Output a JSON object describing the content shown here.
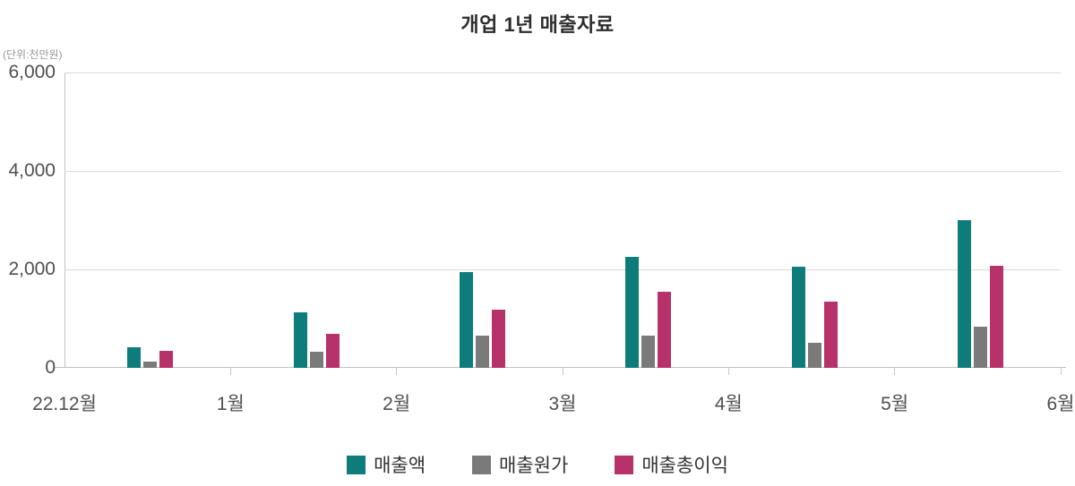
{
  "chart_data": {
    "type": "bar",
    "title": "개업 1년 매출자료",
    "unit": "(단위:천만원)",
    "x_tick_labels": [
      "22.12월",
      "1월",
      "2월",
      "3월",
      "4월",
      "5월",
      "6월"
    ],
    "categories": [
      "22.12월",
      "1월",
      "2월",
      "3월",
      "4월",
      "5월"
    ],
    "y_ticks": [
      0,
      2000,
      4000,
      6000
    ],
    "y_tick_labels": [
      "0",
      "2,000",
      "4,000",
      "6,000"
    ],
    "ylim": [
      0,
      6000
    ],
    "grid": "horizontal",
    "legend_position": "bottom",
    "bars_between_ticks": true,
    "series": [
      {
        "id": "sales",
        "name": "매출액",
        "color": "#0E7C7B",
        "values": [
          420,
          1130,
          1950,
          2250,
          2050,
          3000
        ]
      },
      {
        "id": "cost",
        "name": "매출원가",
        "color": "#7A7A7A",
        "values": [
          130,
          330,
          650,
          650,
          500,
          830
        ]
      },
      {
        "id": "profit",
        "name": "매출총이익",
        "color": "#B73269",
        "values": [
          340,
          690,
          1180,
          1550,
          1350,
          2080
        ]
      }
    ]
  },
  "colors": {
    "background": "#ffffff",
    "grid": "#d9d9d9",
    "axis": "#c3c3c3",
    "title_text": "#2d2d2d",
    "axis_text": "#4f4f4f",
    "unit_text": "#999999",
    "legend_text": "#333333"
  }
}
